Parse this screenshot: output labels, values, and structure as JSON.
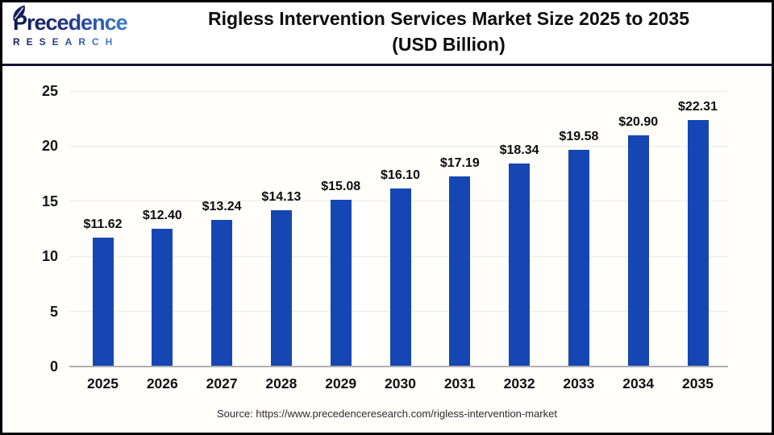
{
  "header": {
    "logo": {
      "line1": "Precedence",
      "line2": "RESEARCH",
      "icon": "leaf-icon"
    },
    "title_line1": "Rigless Intervention Services Market Size 2025 to 2035",
    "title_line2": "(USD Billion)"
  },
  "chart_data": {
    "type": "bar",
    "title": "Rigless Intervention Services Market Size 2025 to 2035 (USD Billion)",
    "categories": [
      "2025",
      "2026",
      "2027",
      "2028",
      "2029",
      "2030",
      "2031",
      "2032",
      "2033",
      "2034",
      "2035"
    ],
    "values": [
      11.62,
      12.4,
      13.24,
      14.13,
      15.08,
      16.1,
      17.19,
      18.34,
      19.58,
      20.9,
      22.31
    ],
    "value_labels": [
      "$11.62",
      "$12.40",
      "$13.24",
      "$14.13",
      "$15.08",
      "$16.10",
      "$17.19",
      "$18.34",
      "$19.58",
      "$20.90",
      "$22.31"
    ],
    "xlabel": "",
    "ylabel": "",
    "ylim": [
      0,
      25
    ],
    "yticks": [
      0,
      5,
      10,
      15,
      20,
      25
    ],
    "grid": true,
    "legend": "none",
    "bar_color": "#1646b3"
  },
  "footer": {
    "source": "Source: https://www.precedenceresearch.com/rigless-intervention-market"
  },
  "colors": {
    "bar": "#1646b3",
    "header_rule": "#14143c",
    "outer_border": "#000000",
    "gridline": "#ebebeb",
    "axis_line": "#b0b0b0",
    "title_text": "#0d0d0d",
    "logo_navy": "#101a4f",
    "logo_blue": "#3a7bd5"
  }
}
